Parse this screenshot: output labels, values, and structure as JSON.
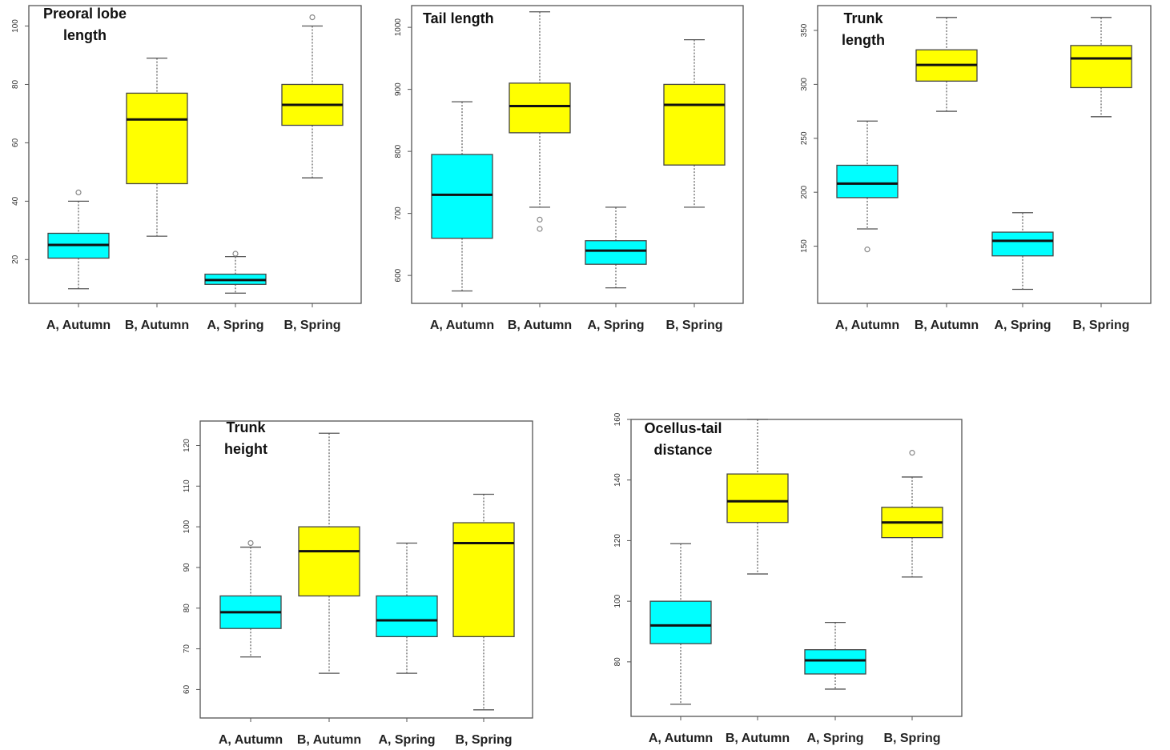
{
  "colors": {
    "A": "#00FFFF",
    "B": "#FFFF00"
  },
  "chart_data": [
    {
      "type": "box",
      "title_lines": [
        "Preoral lobe",
        "length"
      ],
      "categories": [
        "A, Autumn",
        "B, Autumn",
        "A, Spring",
        "B, Spring"
      ],
      "ylim": [
        5,
        107
      ],
      "yticks": [
        20,
        40,
        60,
        80,
        100
      ],
      "boxes": [
        {
          "min": 10,
          "q1": 20.5,
          "median": 25,
          "q3": 29,
          "max": 40,
          "outliers": [
            43
          ]
        },
        {
          "min": 28,
          "q1": 46,
          "median": 68,
          "q3": 77,
          "max": 89,
          "outliers": []
        },
        {
          "min": 8.5,
          "q1": 11.5,
          "median": 13,
          "q3": 15,
          "max": 21,
          "outliers": [
            22
          ]
        },
        {
          "min": 48,
          "q1": 66,
          "median": 73,
          "q3": 80,
          "max": 100,
          "outliers": [
            103
          ]
        }
      ]
    },
    {
      "type": "box",
      "title_lines": [
        "Tail length"
      ],
      "categories": [
        "A, Autumn",
        "B, Autumn",
        "A, Spring",
        "B, Spring"
      ],
      "ylim": [
        555,
        1035
      ],
      "yticks": [
        600,
        700,
        800,
        900,
        1000
      ],
      "boxes": [
        {
          "min": 575,
          "q1": 660,
          "median": 730,
          "q3": 795,
          "max": 880,
          "outliers": []
        },
        {
          "min": 710,
          "q1": 830,
          "median": 873,
          "q3": 910,
          "max": 1025,
          "outliers": [
            690,
            675
          ]
        },
        {
          "min": 580,
          "q1": 618,
          "median": 640,
          "q3": 656,
          "max": 710,
          "outliers": []
        },
        {
          "min": 710,
          "q1": 778,
          "median": 875,
          "q3": 908,
          "max": 980,
          "outliers": []
        }
      ]
    },
    {
      "type": "box",
      "title_lines": [
        "Trunk",
        "length"
      ],
      "categories": [
        "A, Autumn",
        "B, Autumn",
        "A, Spring",
        "B, Spring"
      ],
      "ylim": [
        97,
        373
      ],
      "yticks": [
        150,
        200,
        250,
        300,
        350
      ],
      "boxes": [
        {
          "min": 166,
          "q1": 195,
          "median": 208,
          "q3": 225,
          "max": 266,
          "outliers": [
            147
          ]
        },
        {
          "min": 275,
          "q1": 303,
          "median": 318,
          "q3": 332,
          "max": 362,
          "outliers": []
        },
        {
          "min": 110,
          "q1": 141,
          "median": 155,
          "q3": 163,
          "max": 181,
          "outliers": []
        },
        {
          "min": 270,
          "q1": 297,
          "median": 324,
          "q3": 336,
          "max": 362,
          "outliers": []
        }
      ]
    },
    {
      "type": "box",
      "title_lines": [
        "Trunk",
        "height"
      ],
      "categories": [
        "A, Autumn",
        "B, Autumn",
        "A, Spring",
        "B, Spring"
      ],
      "ylim": [
        53,
        126
      ],
      "yticks": [
        60,
        70,
        80,
        90,
        100,
        110,
        120
      ],
      "boxes": [
        {
          "min": 68,
          "q1": 75,
          "median": 79,
          "q3": 83,
          "max": 95,
          "outliers": [
            96
          ]
        },
        {
          "min": 64,
          "q1": 83,
          "median": 94,
          "q3": 100,
          "max": 123,
          "outliers": []
        },
        {
          "min": 64,
          "q1": 73,
          "median": 77,
          "q3": 83,
          "max": 96,
          "outliers": []
        },
        {
          "min": 55,
          "q1": 73,
          "median": 96,
          "q3": 101,
          "max": 108,
          "outliers": []
        }
      ]
    },
    {
      "type": "box",
      "title_lines": [
        "Ocellus-tail",
        "distance"
      ],
      "categories": [
        "A, Autumn",
        "B, Autumn",
        "A, Spring",
        "B, Spring"
      ],
      "ylim": [
        62,
        160
      ],
      "yticks": [
        80,
        100,
        120,
        140,
        160
      ],
      "boxes": [
        {
          "min": 66,
          "q1": 86,
          "median": 92,
          "q3": 100,
          "max": 119,
          "outliers": []
        },
        {
          "min": 109,
          "q1": 126,
          "median": 133,
          "q3": 142,
          "max": 160,
          "outliers": []
        },
        {
          "min": 71,
          "q1": 76,
          "median": 80.5,
          "q3": 84,
          "max": 93,
          "outliers": []
        },
        {
          "min": 108,
          "q1": 121,
          "median": 126,
          "q3": 131,
          "max": 141,
          "outliers": [
            149
          ]
        }
      ]
    }
  ]
}
